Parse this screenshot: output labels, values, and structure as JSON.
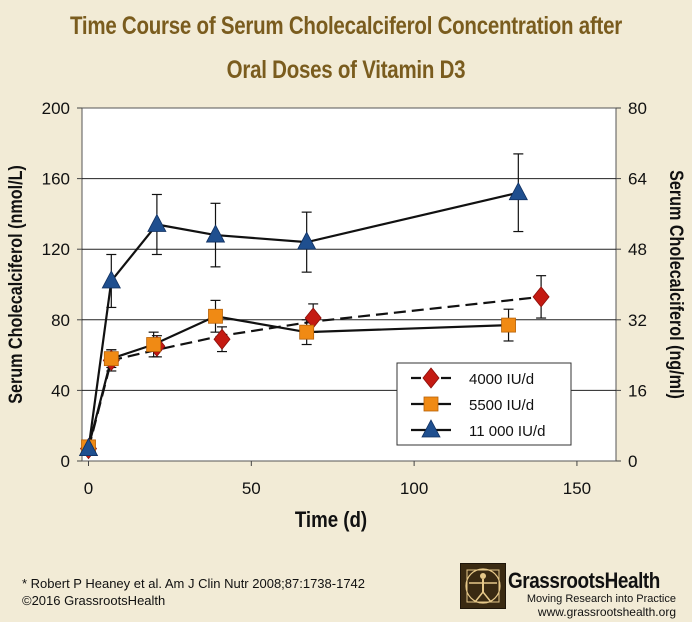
{
  "title_line1": "Time Course of Serum Cholecalciferol Concentration after",
  "title_line2": "Oral Doses of Vitamin D3",
  "chart_data": {
    "type": "line",
    "xlabel": "Time (d)",
    "ylabel": "Serum Cholecalciferol (nmol/L)",
    "y2label": "Serum Cholecalciferol (ng/ml)",
    "xlim": [
      -2,
      162
    ],
    "ylim": [
      0,
      200
    ],
    "y2lim": [
      0,
      80
    ],
    "xticks": [
      "0",
      "50",
      "100",
      "150"
    ],
    "xtick_values": [
      0,
      50,
      100,
      150
    ],
    "yticks": [
      "0",
      "40",
      "80",
      "120",
      "160",
      "200"
    ],
    "ytick_values": [
      0,
      40,
      80,
      120,
      160,
      200
    ],
    "y2ticks": [
      "0",
      "16",
      "32",
      "48",
      "64",
      "80"
    ],
    "legend_position": "inside-right",
    "series": [
      {
        "name": "4000 IU/d",
        "marker": "diamond",
        "color": "#c41a12",
        "line": "dashed",
        "x": [
          0,
          7,
          21,
          41,
          69,
          139
        ],
        "y": [
          7,
          57,
          65,
          69,
          81,
          93
        ],
        "err": [
          3,
          6,
          6,
          7,
          8,
          12
        ],
        "trend_x": [
          0,
          7,
          21,
          41,
          69,
          139
        ],
        "trend_y": [
          7,
          57,
          63,
          71,
          79,
          93
        ]
      },
      {
        "name": "5500 IU/d",
        "marker": "square",
        "color": "#f08a14",
        "line": "solid",
        "x": [
          0,
          7,
          20,
          39,
          67,
          129
        ],
        "y": [
          8,
          58,
          66,
          82,
          73,
          77
        ],
        "err": [
          3,
          5,
          7,
          9,
          7,
          9
        ],
        "trend_x": [
          0,
          7,
          20,
          39,
          67,
          129
        ],
        "trend_y": [
          8,
          58,
          66,
          82,
          73,
          77
        ]
      },
      {
        "name": "11 000 IU/d",
        "marker": "triangle",
        "color": "#1f4f8f",
        "line": "solid",
        "x": [
          0,
          7,
          21,
          39,
          67,
          132
        ],
        "y": [
          7,
          102,
          134,
          128,
          124,
          152
        ],
        "err": [
          3,
          15,
          17,
          18,
          17,
          22
        ],
        "trend_x": [
          0,
          7,
          21,
          39,
          67,
          132
        ],
        "trend_y": [
          7,
          102,
          134,
          128,
          124,
          152
        ]
      }
    ]
  },
  "footer": {
    "citation": "* Robert P Heaney et al. Am J Clin Nutr 2008;87:1738-1742",
    "copyright": "©2016 GrassrootsHealth",
    "brand": "GrassrootsHealth",
    "tagline": "Moving Research into Practice",
    "website": "www.grassrootshealth.org"
  },
  "colors": {
    "background": "#f2ebd6",
    "title": "#7a5c1e"
  }
}
